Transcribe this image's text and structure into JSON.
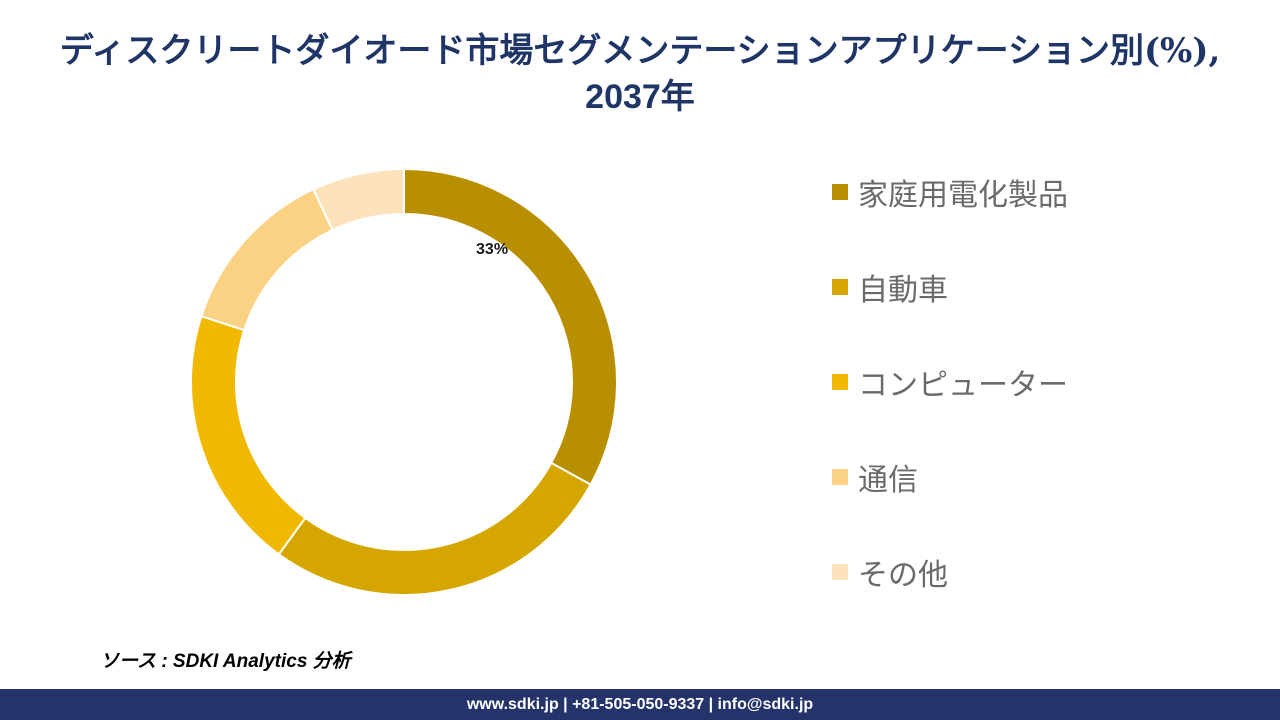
{
  "header": {
    "title_line1": "ディスクリートダイオード市場セグメンテーションアプリケーション別(%),",
    "title_line2": "2037年"
  },
  "chart_data": {
    "type": "pie",
    "style": "donut",
    "categories": [
      "家庭用電化製品",
      "自動車",
      "コンピューター",
      "通信",
      "その他"
    ],
    "values": [
      33,
      27,
      20,
      13,
      7
    ],
    "colors": [
      "#b88f00",
      "#d6a600",
      "#f0b900",
      "#fbd284",
      "#fde3bc"
    ],
    "data_labels": [
      "33%",
      "",
      "",
      "",
      ""
    ],
    "legend_position": "right"
  },
  "source_text": "ソース : SDKI Analytics 分析",
  "footer_text": "www.sdki.jp | +81-505-050-9337 | info@sdki.jp"
}
